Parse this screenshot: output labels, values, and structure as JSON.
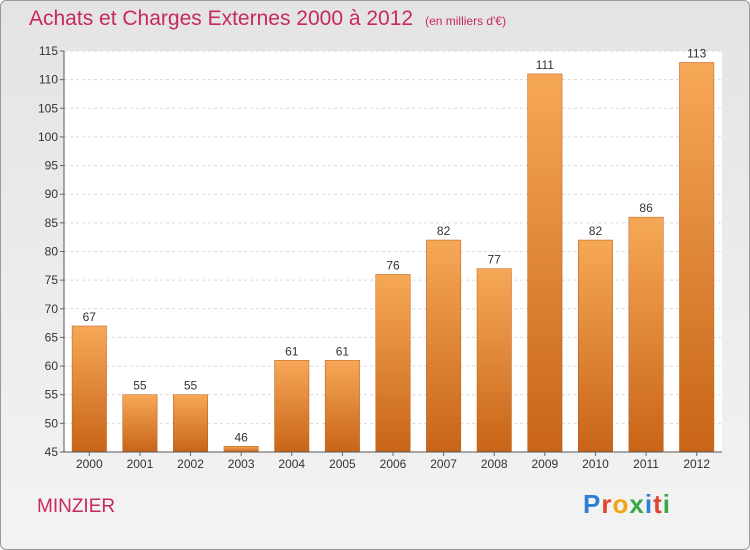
{
  "header": {
    "title": "Achats et Charges Externes 2000 à 2012",
    "unit": "(en milliers d'€)"
  },
  "footer": {
    "place": "MINZIER",
    "brand": "Proxiti"
  },
  "colors": {
    "bar_top": "#f6a857",
    "bar_bottom": "#c86418",
    "title": "#c8285f"
  },
  "chart_data": {
    "type": "bar",
    "title": "Achats et Charges Externes 2000 à 2012",
    "subtitle": "(en milliers d'€)",
    "categories": [
      "2000",
      "2001",
      "2002",
      "2003",
      "2004",
      "2005",
      "2006",
      "2007",
      "2008",
      "2009",
      "2010",
      "2011",
      "2012"
    ],
    "values": [
      67,
      55,
      55,
      46,
      61,
      61,
      76,
      82,
      77,
      111,
      82,
      86,
      113
    ],
    "ylim": [
      45,
      115
    ],
    "yticks": [
      45,
      50,
      55,
      60,
      65,
      70,
      75,
      80,
      85,
      90,
      95,
      100,
      105,
      110,
      115
    ],
    "grid": true,
    "xlabel": "",
    "ylabel": ""
  }
}
